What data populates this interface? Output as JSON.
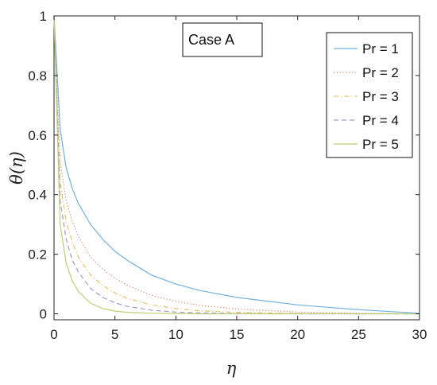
{
  "chart_data": {
    "type": "line",
    "title": "",
    "xlabel": "η",
    "ylabel": "θ(η)",
    "xlim": [
      0,
      30
    ],
    "ylim": [
      -0.02,
      1
    ],
    "xticks": [
      0,
      5,
      10,
      15,
      20,
      25,
      30
    ],
    "xtick_labels": [
      "0",
      "5",
      "10",
      "15",
      "20",
      "25",
      "30"
    ],
    "yticks": [
      0,
      0.2,
      0.4,
      0.6,
      0.8,
      1
    ],
    "ytick_labels": [
      "0",
      "0.2",
      "0.4",
      "0.6",
      "0.8",
      "1"
    ],
    "grid": false,
    "legend_position": "top-right",
    "annotation": "Case A",
    "x": [
      0,
      0.5,
      1,
      1.5,
      2,
      3,
      4,
      5,
      6,
      8,
      10,
      12,
      15,
      20,
      25,
      30
    ],
    "series": [
      {
        "name": "Pr = 1",
        "color": "#6fb1e3",
        "dash": "solid",
        "values": [
          1.0,
          0.62,
          0.49,
          0.42,
          0.37,
          0.3,
          0.25,
          0.21,
          0.18,
          0.13,
          0.1,
          0.078,
          0.055,
          0.03,
          0.014,
          0.002
        ]
      },
      {
        "name": "Pr = 2",
        "color": "#e0866a",
        "dash": "dotted",
        "values": [
          1.0,
          0.51,
          0.38,
          0.31,
          0.26,
          0.19,
          0.15,
          0.12,
          0.096,
          0.062,
          0.042,
          0.028,
          0.016,
          0.006,
          0.002,
          0.0
        ]
      },
      {
        "name": "Pr = 3",
        "color": "#e8c267",
        "dash": "dashdot",
        "values": [
          1.0,
          0.44,
          0.31,
          0.24,
          0.19,
          0.13,
          0.095,
          0.07,
          0.052,
          0.03,
          0.018,
          0.01,
          0.005,
          0.001,
          0.0,
          0.0
        ]
      },
      {
        "name": "Pr = 4",
        "color": "#a695cf",
        "dash": "dashed",
        "values": [
          1.0,
          0.38,
          0.25,
          0.18,
          0.14,
          0.085,
          0.055,
          0.037,
          0.025,
          0.012,
          0.006,
          0.003,
          0.001,
          0.0,
          0.0,
          0.0
        ]
      },
      {
        "name": "Pr = 5",
        "color": "#b9cf74",
        "dash": "solid",
        "values": [
          1.0,
          0.3,
          0.17,
          0.11,
          0.075,
          0.035,
          0.018,
          0.009,
          0.005,
          0.002,
          0.001,
          0.0,
          0.0,
          0.0,
          0.0,
          0.0
        ]
      }
    ]
  }
}
